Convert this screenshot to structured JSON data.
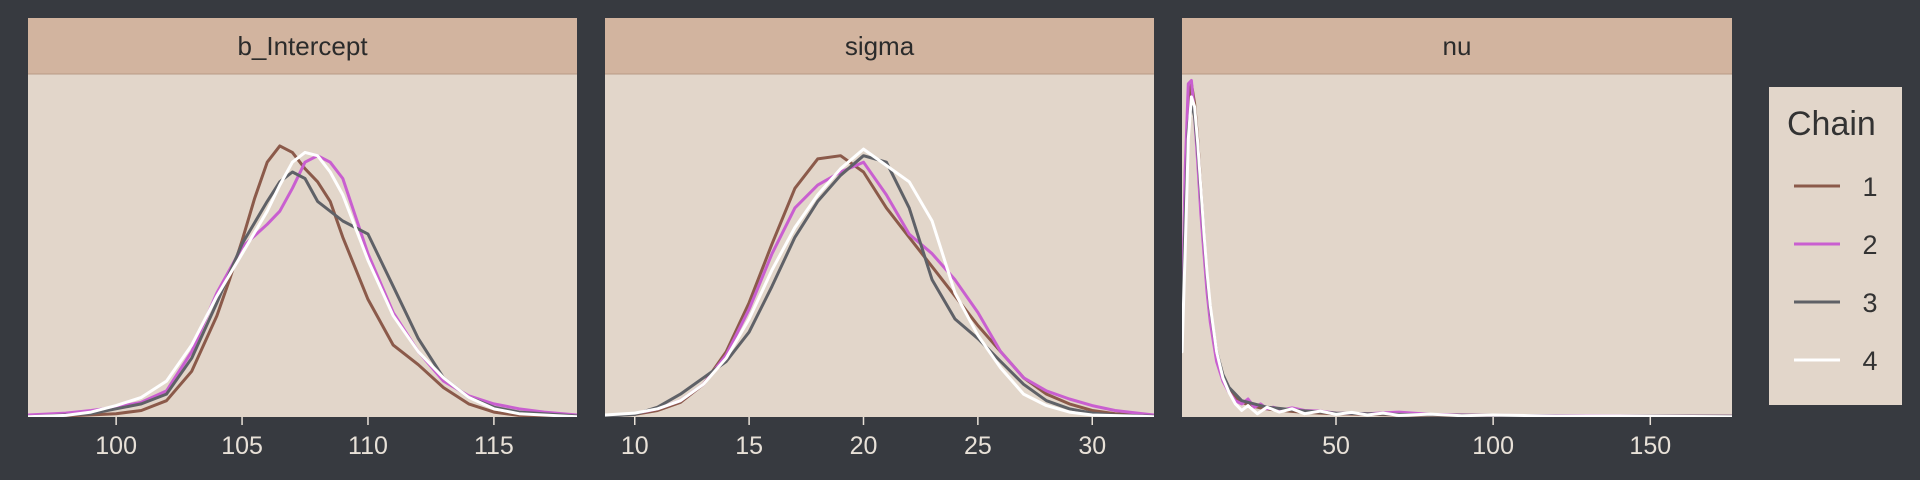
{
  "colors": {
    "background": "#373a40",
    "panel_fill": "#e2d6ca",
    "strip_fill": "#d2b49f",
    "tick_text": "#e8e1d8",
    "chain_colors": [
      "#8b5a4a",
      "#c95fd0",
      "#5f6167",
      "#ffffff"
    ]
  },
  "legend": {
    "title": "Chain",
    "entries": [
      "1",
      "2",
      "3",
      "4"
    ],
    "placement": "right"
  },
  "chart_data": [
    {
      "type": "line",
      "title": "b_Intercept",
      "xlabel": "",
      "ylabel": "",
      "xlim": [
        96.5,
        118.3
      ],
      "xticks": [
        100,
        105,
        110,
        115
      ],
      "grid": false,
      "series": [
        {
          "name": "1",
          "x": [
            96.5,
            98,
            100,
            101,
            102,
            103,
            104,
            104.5,
            105,
            105.5,
            106,
            106.5,
            107,
            107.5,
            108,
            108.5,
            109,
            110,
            111,
            112,
            113,
            114,
            115,
            116,
            118.3
          ],
          "y": [
            0.001,
            0.003,
            0.01,
            0.02,
            0.05,
            0.14,
            0.31,
            0.42,
            0.54,
            0.67,
            0.78,
            0.83,
            0.81,
            0.76,
            0.72,
            0.66,
            0.55,
            0.36,
            0.22,
            0.16,
            0.09,
            0.04,
            0.015,
            0.005,
            0.001
          ]
        },
        {
          "name": "2",
          "x": [
            96.5,
            98,
            99,
            100,
            101,
            102,
            103,
            104,
            105,
            106,
            106.5,
            107,
            107.5,
            108,
            108.5,
            109,
            110,
            111,
            112,
            113,
            114,
            115,
            116,
            117,
            118.3
          ],
          "y": [
            0.006,
            0.012,
            0.02,
            0.03,
            0.045,
            0.08,
            0.2,
            0.38,
            0.52,
            0.59,
            0.63,
            0.7,
            0.78,
            0.8,
            0.78,
            0.73,
            0.5,
            0.32,
            0.2,
            0.11,
            0.065,
            0.04,
            0.025,
            0.015,
            0.006
          ]
        },
        {
          "name": "3",
          "x": [
            96.5,
            99,
            100,
            101,
            102,
            103,
            104,
            105,
            106,
            106.5,
            107,
            107.5,
            108,
            109,
            110,
            111,
            112,
            113,
            114,
            115,
            116,
            118.3
          ],
          "y": [
            0.001,
            0.01,
            0.025,
            0.04,
            0.07,
            0.18,
            0.35,
            0.53,
            0.66,
            0.72,
            0.75,
            0.73,
            0.66,
            0.6,
            0.56,
            0.4,
            0.24,
            0.12,
            0.06,
            0.03,
            0.015,
            0.003
          ]
        },
        {
          "name": "4",
          "x": [
            96.5,
            98,
            99,
            100,
            101,
            102,
            103,
            104,
            105,
            106,
            106.5,
            107,
            107.5,
            108,
            108.5,
            109,
            110,
            111,
            112,
            113,
            114,
            115,
            116,
            118.3
          ],
          "y": [
            0.001,
            0.005,
            0.015,
            0.035,
            0.06,
            0.11,
            0.22,
            0.37,
            0.5,
            0.63,
            0.71,
            0.78,
            0.81,
            0.8,
            0.75,
            0.68,
            0.48,
            0.31,
            0.2,
            0.12,
            0.06,
            0.025,
            0.01,
            0.001
          ]
        }
      ]
    },
    {
      "type": "line",
      "title": "sigma",
      "xlabel": "",
      "ylabel": "",
      "xlim": [
        8.7,
        32.7
      ],
      "xticks": [
        10,
        15,
        20,
        25,
        30
      ],
      "grid": false,
      "series": [
        {
          "name": "1",
          "x": [
            8.7,
            10,
            11,
            12,
            13,
            14,
            15,
            16,
            17,
            18,
            19,
            20,
            21,
            22,
            23,
            24,
            25,
            26,
            27,
            28,
            29,
            30,
            31,
            32.7
          ],
          "y": [
            0.003,
            0.008,
            0.02,
            0.045,
            0.1,
            0.2,
            0.35,
            0.53,
            0.7,
            0.79,
            0.8,
            0.75,
            0.64,
            0.55,
            0.46,
            0.37,
            0.28,
            0.2,
            0.12,
            0.07,
            0.04,
            0.02,
            0.01,
            0.003
          ]
        },
        {
          "name": "2",
          "x": [
            8.7,
            10,
            11,
            12,
            13,
            14,
            15,
            16,
            17,
            18,
            19,
            20,
            21,
            22,
            23,
            24,
            25,
            26,
            27,
            28,
            29,
            30,
            31,
            32.7
          ],
          "y": [
            0.005,
            0.01,
            0.025,
            0.05,
            0.1,
            0.19,
            0.33,
            0.5,
            0.64,
            0.71,
            0.75,
            0.78,
            0.68,
            0.56,
            0.5,
            0.42,
            0.32,
            0.2,
            0.12,
            0.08,
            0.055,
            0.035,
            0.02,
            0.006
          ]
        },
        {
          "name": "3",
          "x": [
            8.7,
            10,
            11,
            12,
            13,
            14,
            15,
            16,
            17,
            18,
            19,
            20,
            21,
            22,
            23,
            24,
            25,
            26,
            27,
            28,
            29,
            30,
            31,
            32.7
          ],
          "y": [
            0.002,
            0.008,
            0.03,
            0.07,
            0.12,
            0.17,
            0.26,
            0.4,
            0.55,
            0.66,
            0.74,
            0.8,
            0.78,
            0.64,
            0.42,
            0.3,
            0.24,
            0.17,
            0.1,
            0.05,
            0.025,
            0.012,
            0.006,
            0.002
          ]
        },
        {
          "name": "4",
          "x": [
            8.7,
            10,
            11,
            12,
            13,
            14,
            15,
            16,
            17,
            18,
            19,
            20,
            21,
            22,
            23,
            24,
            25,
            26,
            27,
            28,
            29,
            30,
            32.7
          ],
          "y": [
            0.006,
            0.012,
            0.025,
            0.05,
            0.1,
            0.18,
            0.3,
            0.45,
            0.58,
            0.68,
            0.76,
            0.82,
            0.77,
            0.72,
            0.6,
            0.38,
            0.25,
            0.15,
            0.07,
            0.035,
            0.015,
            0.006,
            0.001
          ]
        }
      ]
    },
    {
      "type": "line",
      "title": "nu",
      "xlabel": "",
      "ylabel": "",
      "xlim": [
        1,
        176
      ],
      "xticks": [
        50,
        100,
        150
      ],
      "grid": false,
      "series": [
        {
          "name": "1",
          "x": [
            1,
            2,
            3,
            4,
            5,
            6,
            7,
            8,
            9,
            10,
            12,
            14,
            16,
            18,
            20,
            23,
            26,
            30,
            35,
            40,
            45,
            50,
            60,
            70,
            80,
            100,
            130,
            176
          ],
          "y": [
            0.3,
            0.7,
            0.95,
            1.02,
            0.96,
            0.85,
            0.7,
            0.55,
            0.42,
            0.32,
            0.19,
            0.12,
            0.08,
            0.06,
            0.045,
            0.035,
            0.028,
            0.022,
            0.018,
            0.014,
            0.012,
            0.01,
            0.008,
            0.006,
            0.005,
            0.004,
            0.003,
            0.002
          ]
        },
        {
          "name": "2",
          "x": [
            1,
            2,
            3,
            4,
            5,
            6,
            7,
            8,
            9,
            10,
            12,
            14,
            16,
            18,
            20,
            22,
            24,
            26,
            28,
            30,
            33,
            36,
            40,
            45,
            50,
            60,
            70,
            80,
            100,
            130,
            176
          ],
          "y": [
            0.27,
            0.75,
            1.02,
            1.03,
            0.92,
            0.78,
            0.62,
            0.5,
            0.38,
            0.29,
            0.17,
            0.11,
            0.075,
            0.05,
            0.04,
            0.055,
            0.03,
            0.04,
            0.025,
            0.03,
            0.022,
            0.028,
            0.02,
            0.018,
            0.012,
            0.01,
            0.015,
            0.008,
            0.005,
            0.004,
            0.002
          ]
        },
        {
          "name": "3",
          "x": [
            1,
            2,
            3,
            4,
            5,
            6,
            7,
            8,
            9,
            10,
            12,
            14,
            16,
            18,
            20,
            24,
            28,
            33,
            38,
            44,
            50,
            60,
            70,
            80,
            100,
            130,
            176
          ],
          "y": [
            0.25,
            0.6,
            0.88,
            0.96,
            0.92,
            0.82,
            0.68,
            0.55,
            0.43,
            0.33,
            0.2,
            0.13,
            0.09,
            0.07,
            0.05,
            0.04,
            0.03,
            0.025,
            0.02,
            0.016,
            0.012,
            0.01,
            0.008,
            0.006,
            0.005,
            0.003,
            0.002
          ]
        },
        {
          "name": "4",
          "x": [
            1,
            2,
            3,
            4,
            5,
            6,
            7,
            8,
            9,
            10,
            12,
            14,
            16,
            18,
            20,
            22,
            25,
            28,
            32,
            36,
            40,
            45,
            50,
            55,
            60,
            65,
            70,
            80,
            90,
            100,
            120,
            140,
            176
          ],
          "y": [
            0.2,
            0.5,
            0.85,
            0.98,
            0.95,
            0.84,
            0.7,
            0.56,
            0.44,
            0.34,
            0.2,
            0.12,
            0.075,
            0.04,
            0.02,
            0.035,
            0.01,
            0.03,
            0.015,
            0.025,
            0.01,
            0.018,
            0.008,
            0.014,
            0.006,
            0.012,
            0.005,
            0.009,
            0.004,
            0.006,
            0.003,
            0.003,
            0.001
          ]
        }
      ]
    }
  ]
}
